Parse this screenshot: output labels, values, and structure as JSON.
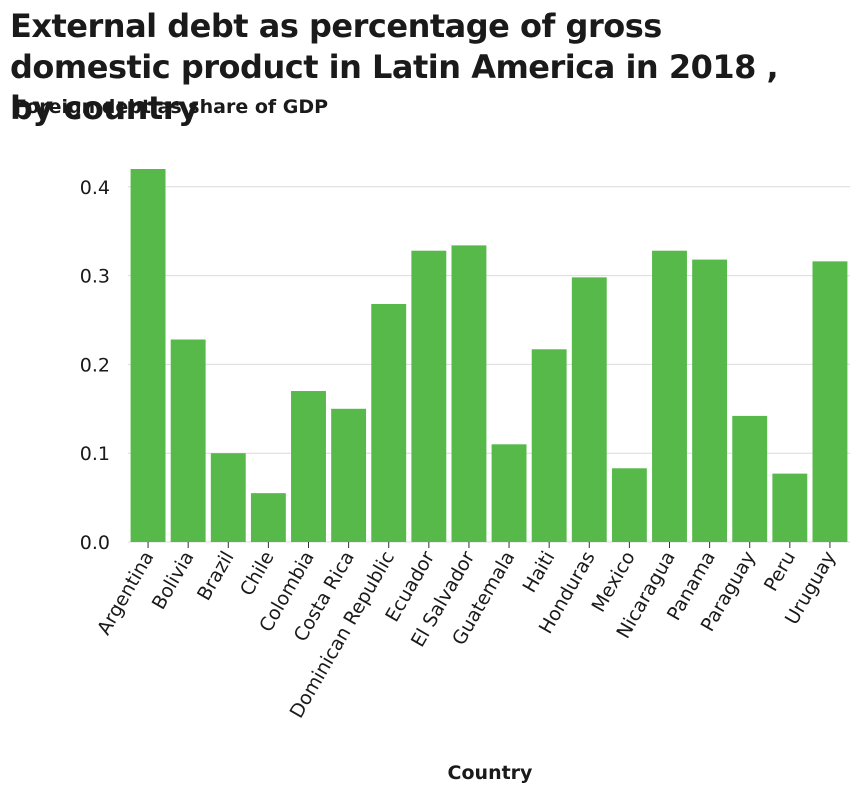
{
  "chart_data": {
    "type": "bar",
    "title": "External debt as percentage of gross domestic product in Latin America in 2018 , by country",
    "xlabel": "Country",
    "ylabel": "Foreign debt as share of GDP",
    "categories": [
      "Argentina",
      "Bolivia",
      "Brazil",
      "Chile",
      "Colombia",
      "Costa Rica",
      "Dominican Republic",
      "Ecuador",
      "El Salvador",
      "Guatemala",
      "Haiti",
      "Honduras",
      "Mexico",
      "Nicaragua",
      "Panama",
      "Paraguay",
      "Peru",
      "Uruguay"
    ],
    "values": [
      0.42,
      0.228,
      0.1,
      0.055,
      0.17,
      0.15,
      0.268,
      0.328,
      0.334,
      0.11,
      0.217,
      0.298,
      0.083,
      0.328,
      0.318,
      0.142,
      0.077,
      0.316
    ],
    "ylim": [
      0,
      0.42
    ],
    "yticks": [
      0.0,
      0.1,
      0.2,
      0.3,
      0.4
    ],
    "ytick_labels": [
      "0.0",
      "0.1",
      "0.2",
      "0.3",
      "0.4"
    ],
    "grid": true,
    "bar_color": "#56b94a",
    "grid_color": "#dcdcdc"
  }
}
